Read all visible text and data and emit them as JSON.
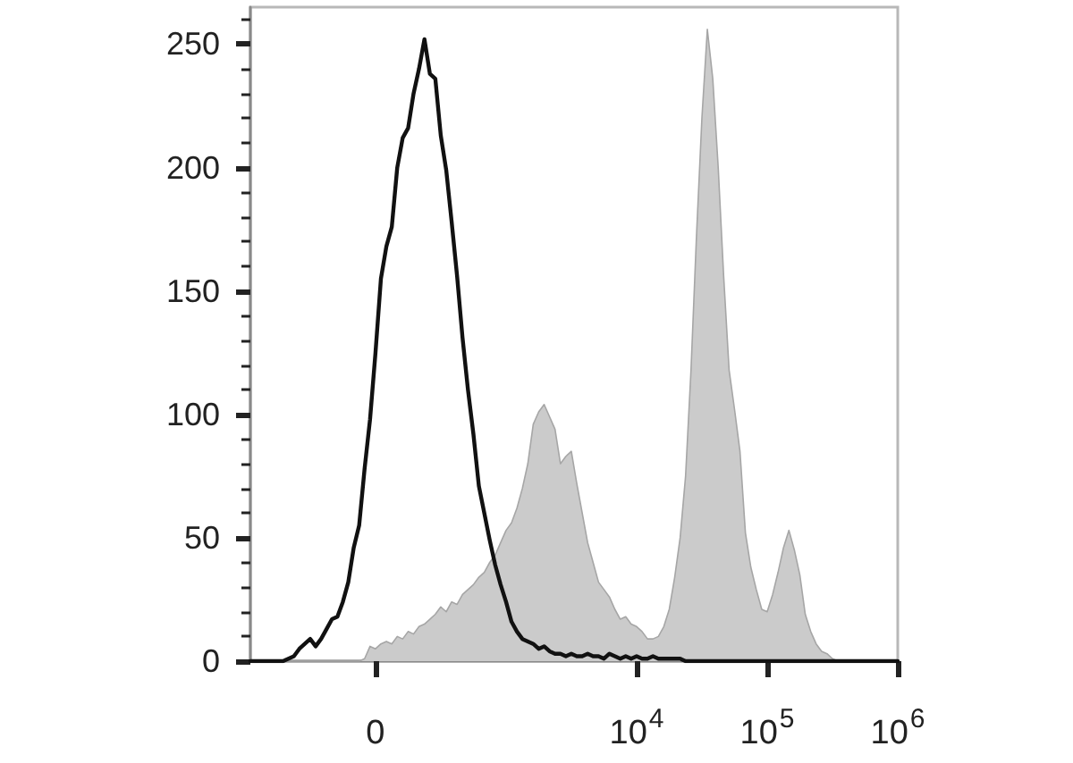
{
  "chart_data": {
    "type": "area",
    "categories": [
      null,
      null,
      null,
      null,
      null,
      null,
      null,
      null,
      null,
      null,
      null,
      null,
      null,
      null,
      null,
      null,
      null,
      null,
      null,
      null,
      null,
      null,
      null,
      "0",
      null,
      null,
      null,
      null,
      null,
      null,
      null,
      null,
      null,
      null,
      null,
      null,
      null,
      null,
      null,
      null,
      null,
      null,
      null,
      null,
      null,
      null,
      null,
      null,
      null,
      null,
      null,
      null,
      null,
      null,
      null,
      null,
      null,
      null,
      null,
      null,
      null,
      null,
      null,
      null,
      null,
      null,
      null,
      null,
      null,
      null,
      null,
      "10$^{4}$",
      null,
      null,
      null,
      null,
      null,
      null,
      null,
      null,
      null,
      null,
      null,
      null,
      null,
      null,
      null,
      null,
      null,
      null,
      null,
      null,
      null,
      null,
      null,
      "10$^{5}$",
      null,
      null,
      null,
      null,
      null,
      null,
      null,
      null,
      null,
      null,
      null,
      null,
      null,
      null,
      null,
      null,
      null,
      null,
      null,
      null,
      null,
      null,
      null,
      "10$^{6}$"
    ],
    "ylim": [
      0,
      265
    ],
    "yticks": [
      0,
      {
        "value": 10,
        "label": null
      },
      {
        "value": 20,
        "label": null
      },
      {
        "value": 30,
        "label": null
      },
      {
        "value": 40,
        "label": null
      },
      50,
      {
        "value": 60,
        "label": null
      },
      {
        "value": 70,
        "label": null
      },
      {
        "value": 80,
        "label": null
      },
      {
        "value": 90,
        "label": null
      },
      100,
      {
        "value": 110,
        "label": null
      },
      {
        "value": 120,
        "label": null
      },
      {
        "value": 130,
        "label": null
      },
      {
        "value": 140,
        "label": null
      },
      150,
      {
        "value": 160,
        "label": null
      },
      {
        "value": 170,
        "label": null
      },
      {
        "value": 180,
        "label": null
      },
      {
        "value": 190,
        "label": null
      },
      200,
      {
        "value": 210,
        "label": null
      },
      {
        "value": 220,
        "label": null
      },
      {
        "value": 230,
        "label": null
      },
      {
        "value": 240,
        "label": null
      },
      250,
      {
        "value": 260,
        "label": null
      }
    ],
    "marker": "none",
    "series": [
      {
        "type": "area",
        "color": "#cbcbcb",
        "values": [
          0,
          0,
          0,
          0,
          0,
          0,
          0,
          0,
          0,
          0,
          0,
          0,
          0,
          0,
          0,
          0,
          0,
          0,
          0,
          0,
          0,
          1,
          6,
          5,
          7,
          8,
          7,
          10,
          9,
          12,
          11,
          14,
          15,
          17,
          19,
          22,
          20,
          24,
          23,
          27,
          29,
          31,
          34,
          36,
          40,
          43,
          48,
          53,
          56,
          62,
          70,
          80,
          96,
          101,
          104,
          99,
          94,
          80,
          83,
          85,
          72,
          60,
          48,
          40,
          32,
          29,
          26,
          21,
          17,
          18,
          15,
          14,
          12,
          9,
          9,
          10,
          14,
          21,
          34,
          50,
          75,
          118,
          172,
          220,
          256,
          236,
          200,
          156,
          118,
          102,
          85,
          52,
          38,
          29,
          21,
          20,
          27,
          36,
          46,
          53,
          45,
          35,
          19,
          12,
          7,
          4,
          3,
          1,
          0,
          0,
          0,
          0,
          0,
          0,
          0,
          0,
          0,
          0,
          0,
          0
        ]
      },
      {
        "type": "line",
        "color": "#111111",
        "values": [
          0,
          0,
          0,
          0,
          0,
          0,
          0,
          1,
          2,
          5,
          7,
          9,
          6,
          9,
          13,
          17,
          18,
          24,
          32,
          46,
          55,
          78,
          98,
          125,
          155,
          168,
          176,
          200,
          212,
          216,
          230,
          240,
          252,
          238,
          236,
          213,
          199,
          178,
          156,
          131,
          110,
          92,
          71,
          60,
          49,
          39,
          31,
          24,
          16,
          12,
          9,
          8,
          7,
          5,
          6,
          4,
          3,
          3,
          2,
          3,
          2,
          2,
          3,
          2,
          2,
          1,
          3,
          2,
          1,
          2,
          1,
          2,
          1,
          1,
          2,
          1,
          1,
          1,
          1,
          1,
          0,
          0,
          0,
          0,
          0,
          0,
          0,
          0,
          0,
          0,
          0,
          0,
          0,
          0,
          0,
          0,
          0,
          0,
          0,
          0,
          0,
          0,
          0,
          0,
          0,
          0,
          0,
          0,
          0,
          0,
          0,
          0,
          0,
          0,
          0,
          0,
          0,
          0,
          0,
          0
        ]
      }
    ]
  }
}
